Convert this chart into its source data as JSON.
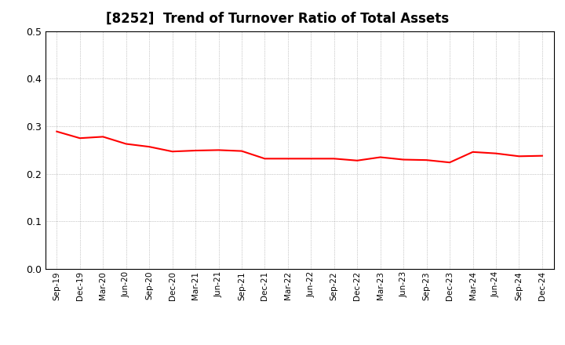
{
  "title": "[8252]  Trend of Turnover Ratio of Total Assets",
  "x_labels": [
    "Sep-19",
    "Dec-19",
    "Mar-20",
    "Jun-20",
    "Sep-20",
    "Dec-20",
    "Mar-21",
    "Jun-21",
    "Sep-21",
    "Dec-21",
    "Mar-22",
    "Jun-22",
    "Sep-22",
    "Dec-22",
    "Mar-23",
    "Jun-23",
    "Sep-23",
    "Dec-23",
    "Mar-24",
    "Jun-24",
    "Sep-24",
    "Dec-24"
  ],
  "y_values": [
    0.289,
    0.275,
    0.278,
    0.263,
    0.257,
    0.247,
    0.249,
    0.25,
    0.248,
    0.232,
    0.232,
    0.232,
    0.232,
    0.228,
    0.235,
    0.23,
    0.229,
    0.224,
    0.246,
    0.243,
    0.237,
    0.238
  ],
  "line_color": "#ff0000",
  "background_color": "#ffffff",
  "grid_color": "#999999",
  "title_fontsize": 12,
  "ylim": [
    0.0,
    0.5
  ],
  "yticks": [
    0.0,
    0.1,
    0.2,
    0.3,
    0.4,
    0.5
  ]
}
